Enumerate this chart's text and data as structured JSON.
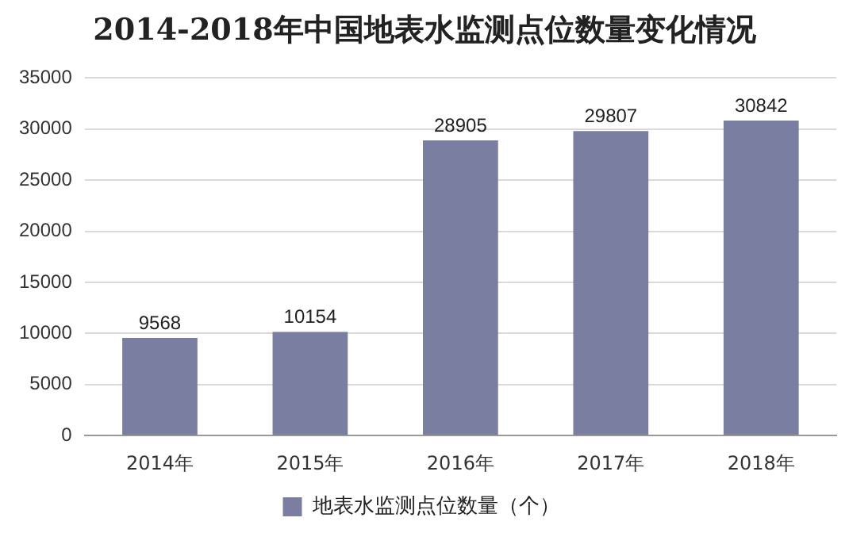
{
  "chart_data": {
    "type": "bar",
    "title": "2014-2018年中国地表水监测点位数量变化情况",
    "categories": [
      "2014年",
      "2015年",
      "2016年",
      "2017年",
      "2018年"
    ],
    "series": [
      {
        "name": "地表水监测点位数量（个）",
        "color": "#7a7fa1",
        "values": [
          9568,
          10154,
          28905,
          29807,
          30842
        ]
      }
    ],
    "ylim": [
      0,
      35000
    ],
    "yticks": [
      0,
      5000,
      10000,
      15000,
      20000,
      25000,
      30000,
      35000
    ],
    "grid": "y",
    "legend": "bottom",
    "data_labels": true
  }
}
